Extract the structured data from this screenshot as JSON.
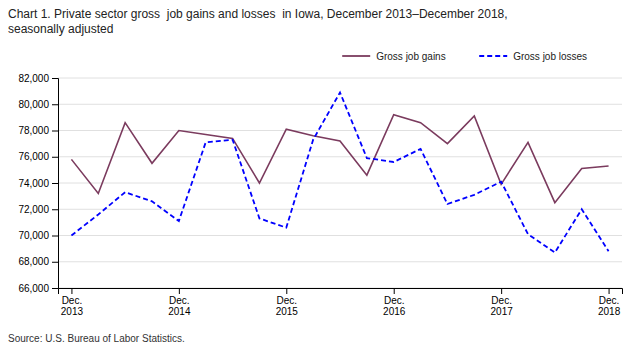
{
  "chart_data": {
    "type": "line",
    "title": "Chart 1. Private sector gross  job gains and losses  in Iowa, December 2013–December 2018,\nseasonally adjusted",
    "annotations": [
      "Source: U.S. Bureau of Labor Statistics."
    ],
    "categories": [
      "Dec.\n2013",
      null,
      null,
      null,
      "Dec.\n2014",
      null,
      null,
      null,
      "Dec.\n2015",
      null,
      null,
      null,
      "Dec.\n2016",
      null,
      null,
      null,
      "Dec.\n2017",
      null,
      null,
      null,
      "Dec.\n2018"
    ],
    "series": [
      {
        "name": "Gross job gains",
        "color": "#7B3B5E",
        "line_style": "solid",
        "values": [
          75800,
          73200,
          78600,
          75500,
          78000,
          77700,
          77400,
          74000,
          78100,
          77600,
          77200,
          74600,
          79200,
          78600,
          77000,
          79100,
          73900,
          77100,
          72500,
          75100,
          75300
        ]
      },
      {
        "name": "Gross job losses",
        "color": "#0000FF",
        "line_style": "dashed",
        "values": [
          70000,
          71600,
          73300,
          72600,
          71100,
          77100,
          77300,
          71300,
          70600,
          77300,
          80900,
          75900,
          75600,
          76600,
          72400,
          73100,
          74100,
          70100,
          68700,
          72000,
          68800
        ]
      }
    ],
    "ylim": [
      66000,
      82000
    ],
    "yticks": [
      {
        "value": 66000,
        "label": "66,000"
      },
      {
        "value": 68000,
        "label": "68,000"
      },
      {
        "value": 70000,
        "label": "70,000"
      },
      {
        "value": 72000,
        "label": "72,000"
      },
      {
        "value": 74000,
        "label": "74,000"
      },
      {
        "value": 76000,
        "label": "76,000"
      },
      {
        "value": 78000,
        "label": "78,000"
      },
      {
        "value": 80000,
        "label": "80,000"
      },
      {
        "value": 82000,
        "label": "82,000"
      }
    ],
    "grid": true,
    "legend": "upper right"
  }
}
